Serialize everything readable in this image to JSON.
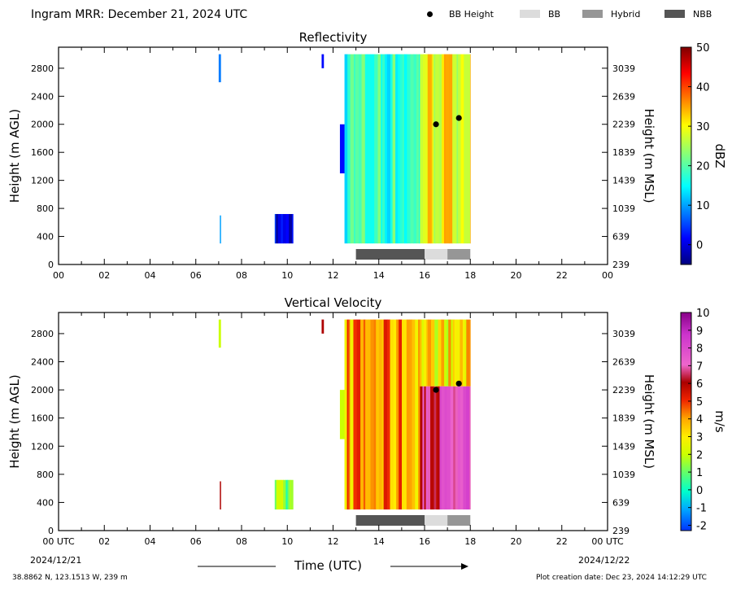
{
  "header": {
    "title": "Ingram MRR:  December 21, 2024 UTC"
  },
  "legend": {
    "items": [
      {
        "label": "BB Height",
        "marker": "dot",
        "color": "#000000"
      },
      {
        "label": "BB",
        "marker": "rect",
        "color": "#dcdcdc"
      },
      {
        "label": "Hybrid",
        "marker": "rect",
        "color": "#969696"
      },
      {
        "label": "NBB",
        "marker": "rect",
        "color": "#555555"
      }
    ]
  },
  "footer": {
    "location": "38.8862 N, 123.1513 W, 239 m",
    "creation": "Plot creation date: Dec 23, 2024 14:12:29 UTC",
    "xlabel": "Time (UTC)",
    "date_left": "2024/12/21",
    "date_right": "2024/12/22"
  },
  "chart_data": [
    {
      "type": "heatmap",
      "title": "Reflectivity",
      "ylabel": "Height (m AGL)",
      "ylabel_right": "Height (m MSL)",
      "colorbar_label": "dBZ",
      "colorbar_ticks": [
        0,
        10,
        20,
        30,
        40,
        50
      ],
      "colorbar_range": [
        -5,
        50
      ],
      "colormap": "jet",
      "xlim": [
        0,
        24
      ],
      "ylim": [
        0,
        3100
      ],
      "xticks": [
        "00",
        "02",
        "04",
        "06",
        "08",
        "10",
        "12",
        "14",
        "16",
        "18",
        "20",
        "22",
        "00"
      ],
      "yticks": [
        0,
        400,
        800,
        1200,
        1600,
        2000,
        2400,
        2800
      ],
      "yticks_right": [
        239,
        639,
        1039,
        1439,
        1839,
        2239,
        2639,
        3039
      ],
      "echoes": [
        {
          "t_start": 7.0,
          "t_end": 7.1,
          "h_bottom": 2600,
          "h_top": 3000,
          "value": 8
        },
        {
          "t_start": 7.05,
          "t_end": 7.1,
          "h_bottom": 300,
          "h_top": 700,
          "value": 10
        },
        {
          "t_start": 9.45,
          "t_end": 10.25,
          "h_bottom": 300,
          "h_top": 720,
          "value": 0
        },
        {
          "t_start": 11.5,
          "t_end": 11.6,
          "h_bottom": 2800,
          "h_top": 3000,
          "value": 2
        },
        {
          "t_start": 12.3,
          "t_end": 12.6,
          "h_bottom": 1300,
          "h_top": 2000,
          "value": 2
        },
        {
          "t_start": 12.5,
          "t_end": 15.8,
          "h_bottom": 300,
          "h_top": 3000,
          "value": 18
        },
        {
          "t_start": 15.8,
          "t_end": 18.0,
          "h_bottom": 300,
          "h_top": 3000,
          "value": 30
        }
      ],
      "bb_height": [
        {
          "t": 16.5,
          "h": 2000
        },
        {
          "t": 17.5,
          "h": 2090
        }
      ],
      "bb_classification": [
        {
          "class": "NBB",
          "t_start": 13.0,
          "t_end": 16.0
        },
        {
          "class": "BB",
          "t_start": 16.0,
          "t_end": 17.0
        },
        {
          "class": "Hybrid",
          "t_start": 17.0,
          "t_end": 18.0
        }
      ]
    },
    {
      "type": "heatmap",
      "title": "Vertical Velocity",
      "ylabel": "Height (m AGL)",
      "ylabel_right": "Height (m MSL)",
      "colorbar_label": "m/s",
      "colorbar_ticks": [
        -2,
        -1,
        0,
        1,
        2,
        3,
        4,
        5,
        6,
        7,
        8,
        9,
        10
      ],
      "colorbar_range": [
        -2.3,
        10
      ],
      "colormap": "velocity",
      "xlim": [
        0,
        24
      ],
      "ylim": [
        0,
        3100
      ],
      "xticks": [
        "00 UTC",
        "02",
        "04",
        "06",
        "08",
        "10",
        "12",
        "14",
        "16",
        "18",
        "20",
        "22",
        "00 UTC"
      ],
      "yticks": [
        0,
        400,
        800,
        1200,
        1600,
        2000,
        2400,
        2800
      ],
      "yticks_right": [
        239,
        639,
        1039,
        1439,
        1839,
        2239,
        2639,
        3039
      ],
      "echoes": [
        {
          "t_start": 7.0,
          "t_end": 7.1,
          "h_bottom": 2600,
          "h_top": 3000,
          "value": 2
        },
        {
          "t_start": 7.05,
          "t_end": 7.1,
          "h_bottom": 300,
          "h_top": 700,
          "value": 6
        },
        {
          "t_start": 9.45,
          "t_end": 10.25,
          "h_bottom": 300,
          "h_top": 720,
          "value": 1
        },
        {
          "t_start": 11.5,
          "t_end": 11.6,
          "h_bottom": 2800,
          "h_top": 3000,
          "value": 6
        },
        {
          "t_start": 12.3,
          "t_end": 12.6,
          "h_bottom": 1300,
          "h_top": 2000,
          "value": 2
        },
        {
          "t_start": 12.5,
          "t_end": 15.8,
          "h_bottom": 300,
          "h_top": 3000,
          "value": 4
        },
        {
          "t_start": 15.8,
          "t_end": 18.0,
          "h_bottom": 2050,
          "h_top": 3000,
          "value": 3
        },
        {
          "t_start": 15.8,
          "t_end": 18.0,
          "h_bottom": 300,
          "h_top": 2050,
          "value": 7
        }
      ],
      "bb_height": [
        {
          "t": 16.5,
          "h": 2000
        },
        {
          "t": 17.5,
          "h": 2090
        }
      ],
      "bb_classification": [
        {
          "class": "NBB",
          "t_start": 13.0,
          "t_end": 16.0
        },
        {
          "class": "BB",
          "t_start": 16.0,
          "t_end": 17.0
        },
        {
          "class": "Hybrid",
          "t_start": 17.0,
          "t_end": 18.0
        }
      ]
    }
  ]
}
